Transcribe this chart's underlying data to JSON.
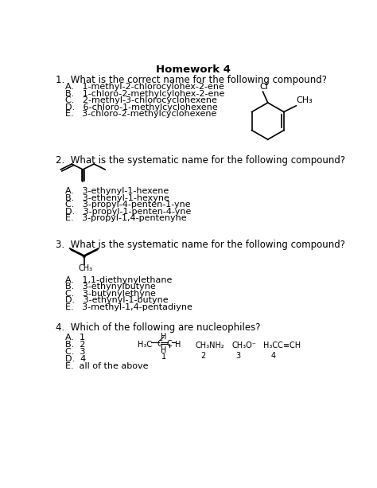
{
  "title": "Homework 4",
  "bg_color": "#ffffff",
  "text_color": "#000000",
  "font_size": 8.5,
  "q1_text": "1.  What is the correct name for the following compound?",
  "q1_choices": [
    "A.   1-methyl-2-chlorocylohex-2-ene",
    "B.   1-chloro-2-methylcylohex-2-ene",
    "C.   2-methyl-3-chlorocyclohexene",
    "D.   6-chloro-1-methylcyclohexene",
    "E.   3-chloro-2-methylcyclohexene"
  ],
  "q2_text": "2.  What is the systematic name for the following compound?",
  "q2_choices": [
    "A.   3-ethynyl-1-hexene",
    "B.   3-ethenyl-1-hexyne",
    "C.   3-propyl-4-penten-1-yne",
    "D.   3-propyl-1-penten-4-yne",
    "E.   3-propyl-1,4-pentenyne"
  ],
  "q3_text": "3.  What is the systematic name for the following compound?",
  "q3_choices": [
    "A.   1,1-diethynylethane",
    "B.   3-ethynylbutyne",
    "C.   3-butynylethyne",
    "D.   3-ethynyl-1-butyne",
    "E.   3-methyl-1,4-pentadiyne"
  ],
  "q4_text": "4.  Which of the following are nucleophiles?",
  "q4_choices": [
    "A.  1",
    "B.  2",
    "C.  3",
    "D.  4",
    "E.  all of the above"
  ]
}
